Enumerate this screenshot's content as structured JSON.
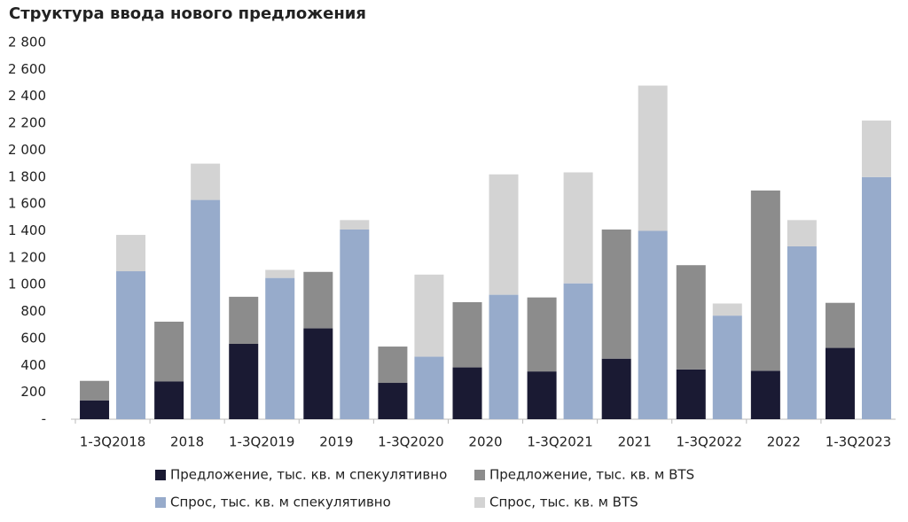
{
  "chart_data": {
    "type": "stacked_grouped_bar",
    "title": "Структура ввода нового предложения",
    "categories": [
      "1-3Q2018",
      "2018",
      "1-3Q2019",
      "2019",
      "1-3Q2020",
      "2020",
      "1-3Q2021",
      "2021",
      "1-3Q2022",
      "2022",
      "1-3Q2023"
    ],
    "series": [
      {
        "name": "Предложение, тыс. кв. м спекулятивно",
        "color": "#1a1a33",
        "stack": 0,
        "values": [
          140,
          280,
          560,
          675,
          270,
          385,
          355,
          450,
          370,
          360,
          530
        ]
      },
      {
        "name": "Предложение, тыс. кв. м BTS",
        "color": "#8c8c8c",
        "stack": 0,
        "values": [
          145,
          445,
          350,
          420,
          270,
          485,
          550,
          960,
          775,
          1340,
          335
        ]
      },
      {
        "name": "Спрос, тыс. кв. м спекулятивно",
        "color": "#97abcb",
        "stack": 1,
        "values": [
          1100,
          1630,
          1050,
          1410,
          465,
          925,
          1010,
          1400,
          770,
          1285,
          1800
        ]
      },
      {
        "name": "Спрос, тыс. кв. м BTS",
        "color": "#d3d3d3",
        "stack": 1,
        "values": [
          270,
          270,
          60,
          70,
          610,
          895,
          825,
          1080,
          90,
          195,
          420
        ]
      }
    ],
    "ylim": [
      0,
      2800
    ],
    "yticks": [
      {
        "value": 0,
        "label": "-"
      },
      200,
      400,
      600,
      800,
      {
        "value": 1000,
        "label": "1 000"
      },
      {
        "value": 1200,
        "label": "1 200"
      },
      {
        "value": 1400,
        "label": "1 400"
      },
      {
        "value": 1600,
        "label": "1 600"
      },
      {
        "value": 1800,
        "label": "1 800"
      },
      {
        "value": 2000,
        "label": "2 000"
      },
      {
        "value": 2200,
        "label": "2 200"
      },
      {
        "value": 2400,
        "label": "2 400"
      },
      {
        "value": 2600,
        "label": "2 600"
      },
      {
        "value": 2800,
        "label": "2 800"
      }
    ],
    "grid": false
  }
}
